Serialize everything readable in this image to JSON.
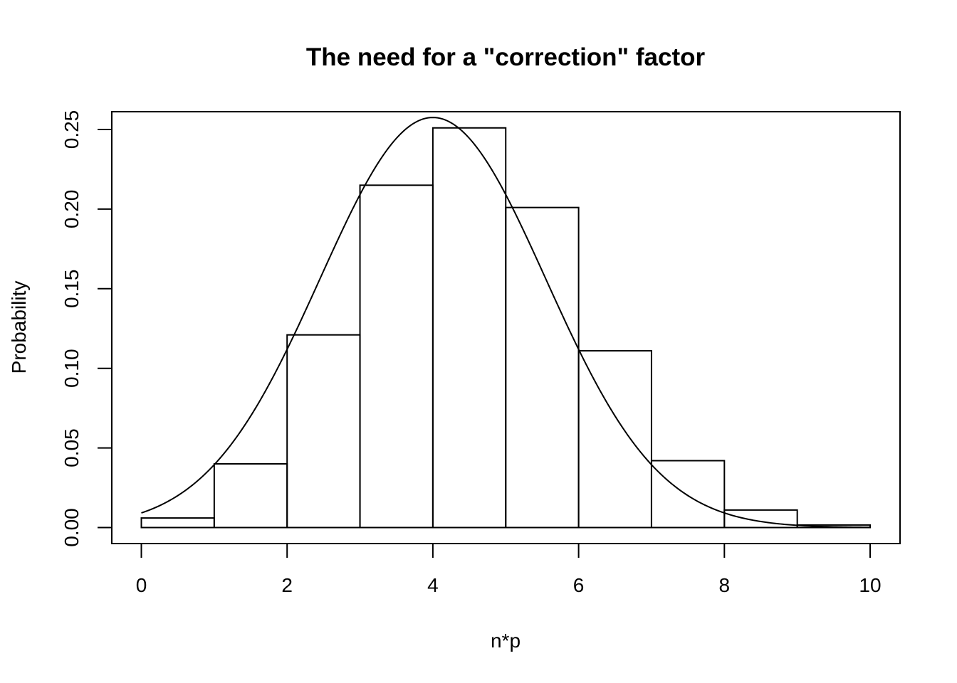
{
  "chart_data": {
    "type": "bar",
    "title": "The need for a \"correction\" factor",
    "xlabel": "n*p",
    "ylabel": "Probability",
    "xlim": [
      -0.4,
      10.4
    ],
    "ylim": [
      0,
      0.27
    ],
    "x_ticks": [
      0,
      2,
      4,
      6,
      8,
      10
    ],
    "x_tick_labels": [
      "0",
      "2",
      "4",
      "6",
      "8",
      "10"
    ],
    "y_ticks": [
      0.0,
      0.05,
      0.1,
      0.15,
      0.2,
      0.25
    ],
    "y_tick_labels": [
      "0.00",
      "0.05",
      "0.10",
      "0.15",
      "0.20",
      "0.25"
    ],
    "bins": [
      {
        "from": 0,
        "to": 1,
        "value": 0.006
      },
      {
        "from": 1,
        "to": 2,
        "value": 0.04
      },
      {
        "from": 2,
        "to": 3,
        "value": 0.121
      },
      {
        "from": 3,
        "to": 4,
        "value": 0.215
      },
      {
        "from": 4,
        "to": 5,
        "value": 0.251
      },
      {
        "from": 5,
        "to": 6,
        "value": 0.201
      },
      {
        "from": 6,
        "to": 7,
        "value": 0.111
      },
      {
        "from": 7,
        "to": 8,
        "value": 0.042
      },
      {
        "from": 8,
        "to": 9,
        "value": 0.011
      },
      {
        "from": 9,
        "to": 10,
        "value": 0.0016
      }
    ],
    "curve": {
      "type": "normal-density",
      "mean": 4.0,
      "sd": 1.549,
      "x_range": [
        0,
        10
      ]
    },
    "grid": false,
    "legend": "none"
  }
}
